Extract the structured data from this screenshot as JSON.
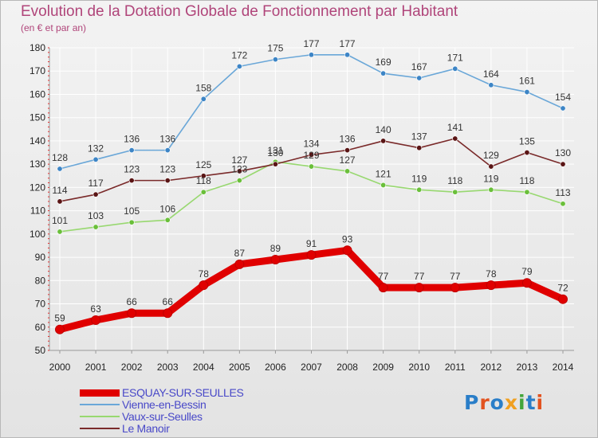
{
  "title": "Evolution de la Dotation Globale de Fonctionnement par Habitant",
  "subtitle": "(en € et par an)",
  "colors": {
    "title": "#b0457a",
    "legend_text": "#4848c8",
    "grid": "#ffffff",
    "axis": "#888888"
  },
  "logo": {
    "text": "Proxiti",
    "colors": [
      "#2a7ec8",
      "#e2521f",
      "#2a7ec8",
      "#f0a020",
      "#43a53a",
      "#2a7ec8",
      "#e2521f"
    ]
  },
  "chart_data": {
    "type": "line",
    "title": "Evolution de la Dotation Globale de Fonctionnement par Habitant",
    "subtitle": "(en € et par an)",
    "xlabel": "",
    "ylabel": "",
    "x": [
      "2000",
      "2001",
      "2002",
      "2003",
      "2004",
      "2005",
      "2006",
      "2007",
      "2008",
      "2009",
      "2010",
      "2011",
      "2012",
      "2013",
      "2014"
    ],
    "ylim": [
      50,
      180
    ],
    "yticks": [
      50,
      60,
      70,
      80,
      90,
      100,
      110,
      120,
      130,
      140,
      150,
      160,
      170,
      180
    ],
    "grid": true,
    "legend_position": "bottom-left",
    "series": [
      {
        "name": "ESQUAY-SUR-SEULLES",
        "color": "#e00000",
        "marker_color": "#e00000",
        "emphasis": true,
        "values": [
          59,
          63,
          66,
          66,
          78,
          87,
          89,
          91,
          93,
          77,
          77,
          77,
          78,
          79,
          72
        ]
      },
      {
        "name": "Vienne-en-Bessin",
        "color": "#6aa7d8",
        "marker_color": "#3d85c6",
        "emphasis": false,
        "values": [
          128,
          132,
          136,
          136,
          158,
          172,
          175,
          177,
          177,
          169,
          167,
          171,
          164,
          161,
          154
        ]
      },
      {
        "name": "Vaux-sur-Seulles",
        "color": "#98d870",
        "marker_color": "#6abf3a",
        "emphasis": false,
        "values": [
          101,
          103,
          105,
          106,
          118,
          123,
          131,
          129,
          127,
          121,
          119,
          118,
          119,
          118,
          113
        ]
      },
      {
        "name": "Le Manoir",
        "color": "#7a2a2a",
        "marker_color": "#5a1515",
        "emphasis": false,
        "values": [
          114,
          117,
          123,
          123,
          125,
          127,
          130,
          134,
          136,
          140,
          137,
          141,
          129,
          135,
          130
        ]
      }
    ]
  }
}
